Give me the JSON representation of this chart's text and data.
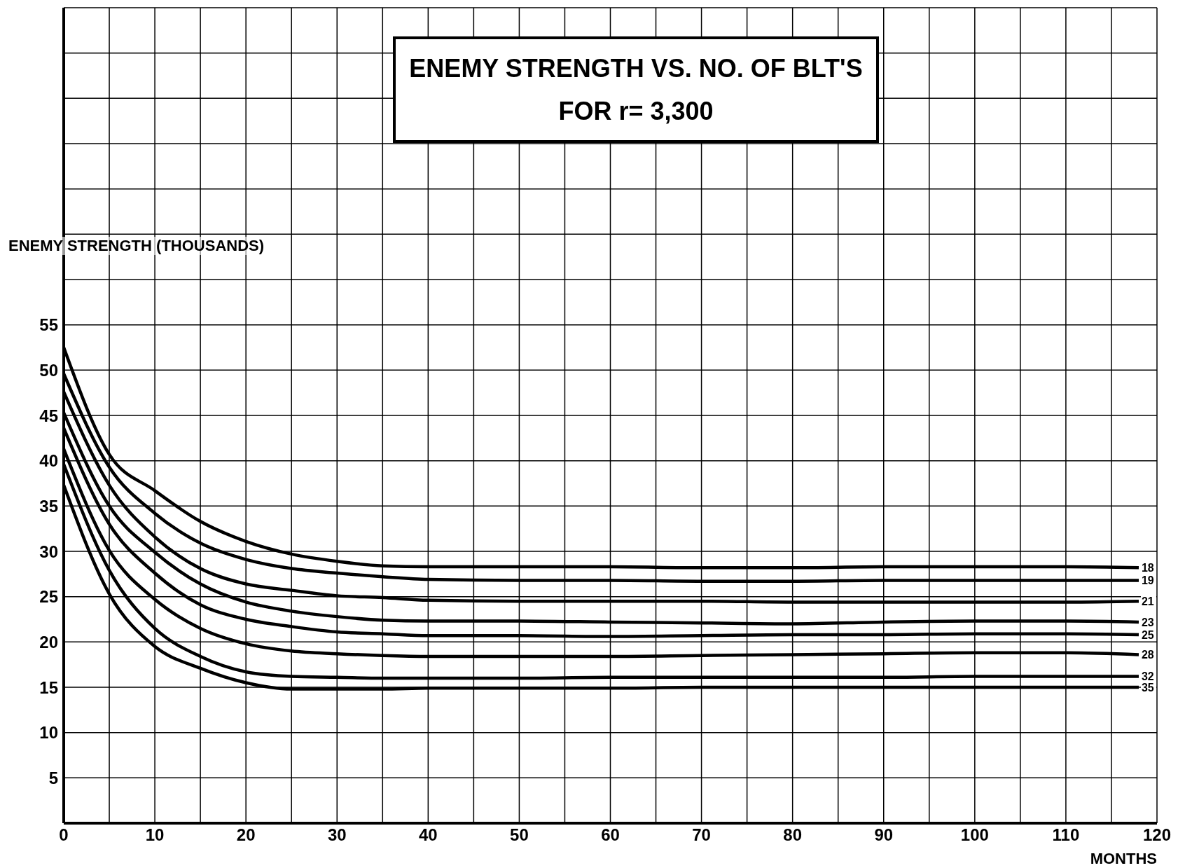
{
  "chart_data": {
    "type": "line",
    "title": "ENEMY STRENGTH VS. NO. OF BLT'S",
    "subtitle": "FOR r= 3,300",
    "xlabel": "MONTHS",
    "ylabel": "ENEMY STRENGTH (THOUSANDS)",
    "x": [
      0,
      5,
      10,
      15,
      20,
      25,
      30,
      35,
      40,
      50,
      60,
      70,
      80,
      90,
      100,
      110,
      118
    ],
    "series": [
      {
        "name": "18",
        "color": "#000000",
        "values": [
          52.5,
          40.7,
          36.7,
          33.3,
          31.1,
          29.7,
          28.9,
          28.4,
          28.3,
          28.3,
          28.3,
          28.2,
          28.2,
          28.3,
          28.3,
          28.3,
          28.2
        ]
      },
      {
        "name": "19",
        "color": "#000000",
        "values": [
          49.6,
          39.3,
          34.2,
          30.9,
          29.1,
          28.1,
          27.6,
          27.2,
          26.9,
          26.8,
          26.8,
          26.7,
          26.7,
          26.8,
          26.8,
          26.8,
          26.8
        ]
      },
      {
        "name": "21",
        "color": "#000000",
        "values": [
          47.6,
          37.3,
          31.6,
          28.1,
          26.4,
          25.7,
          25.1,
          24.9,
          24.6,
          24.5,
          24.5,
          24.5,
          24.4,
          24.4,
          24.4,
          24.4,
          24.5
        ]
      },
      {
        "name": "23",
        "color": "#000000",
        "values": [
          45.3,
          35.0,
          29.9,
          26.4,
          24.4,
          23.4,
          22.8,
          22.4,
          22.3,
          22.3,
          22.2,
          22.1,
          22.0,
          22.2,
          22.3,
          22.3,
          22.2
        ]
      },
      {
        "name": "25",
        "color": "#000000",
        "values": [
          43.6,
          33.0,
          27.6,
          24.1,
          22.5,
          21.7,
          21.1,
          20.9,
          20.7,
          20.7,
          20.6,
          20.7,
          20.8,
          20.8,
          20.9,
          20.9,
          20.8
        ]
      },
      {
        "name": "28",
        "color": "#000000",
        "values": [
          41.3,
          30.1,
          24.7,
          21.5,
          19.8,
          19.0,
          18.7,
          18.5,
          18.4,
          18.4,
          18.4,
          18.5,
          18.6,
          18.7,
          18.8,
          18.8,
          18.6
        ]
      },
      {
        "name": "32",
        "color": "#000000",
        "values": [
          39.6,
          27.9,
          21.5,
          18.4,
          16.7,
          16.2,
          16.1,
          16.0,
          16.0,
          16.0,
          16.1,
          16.1,
          16.1,
          16.1,
          16.2,
          16.2,
          16.2
        ]
      },
      {
        "name": "35",
        "color": "#000000",
        "values": [
          37.3,
          25.3,
          19.5,
          17.1,
          15.5,
          14.8,
          14.8,
          14.8,
          14.9,
          14.9,
          14.9,
          15.0,
          15.0,
          15.0,
          15.0,
          15.0,
          15.0
        ]
      }
    ],
    "xlim": [
      0,
      120
    ],
    "xticks": [
      0,
      {
        "value": 5,
        "label": null
      },
      10,
      {
        "value": 15,
        "label": null
      },
      20,
      {
        "value": 25,
        "label": null
      },
      30,
      {
        "value": 35,
        "label": null
      },
      40,
      {
        "value": 45,
        "label": null
      },
      50,
      {
        "value": 55,
        "label": null
      },
      60,
      {
        "value": 65,
        "label": null
      },
      70,
      {
        "value": 75,
        "label": null
      },
      80,
      {
        "value": 85,
        "label": null
      },
      90,
      {
        "value": 95,
        "label": null
      },
      100,
      {
        "value": 105,
        "label": null
      },
      110,
      {
        "value": 115,
        "label": null
      },
      120
    ],
    "ylim": [
      0,
      90
    ],
    "yticks": [
      {
        "value": 0,
        "label": null
      },
      5,
      10,
      15,
      20,
      25,
      30,
      35,
      40,
      45,
      50,
      55,
      {
        "value": 60,
        "label": null
      },
      {
        "value": 65,
        "label": null
      },
      {
        "value": 70,
        "label": null
      },
      {
        "value": 75,
        "label": null
      },
      {
        "value": 80,
        "label": null
      },
      {
        "value": 85,
        "label": null
      },
      {
        "value": 90,
        "label": null
      }
    ],
    "grid": true,
    "legend": false,
    "marker": "none",
    "line_style": "solid"
  }
}
